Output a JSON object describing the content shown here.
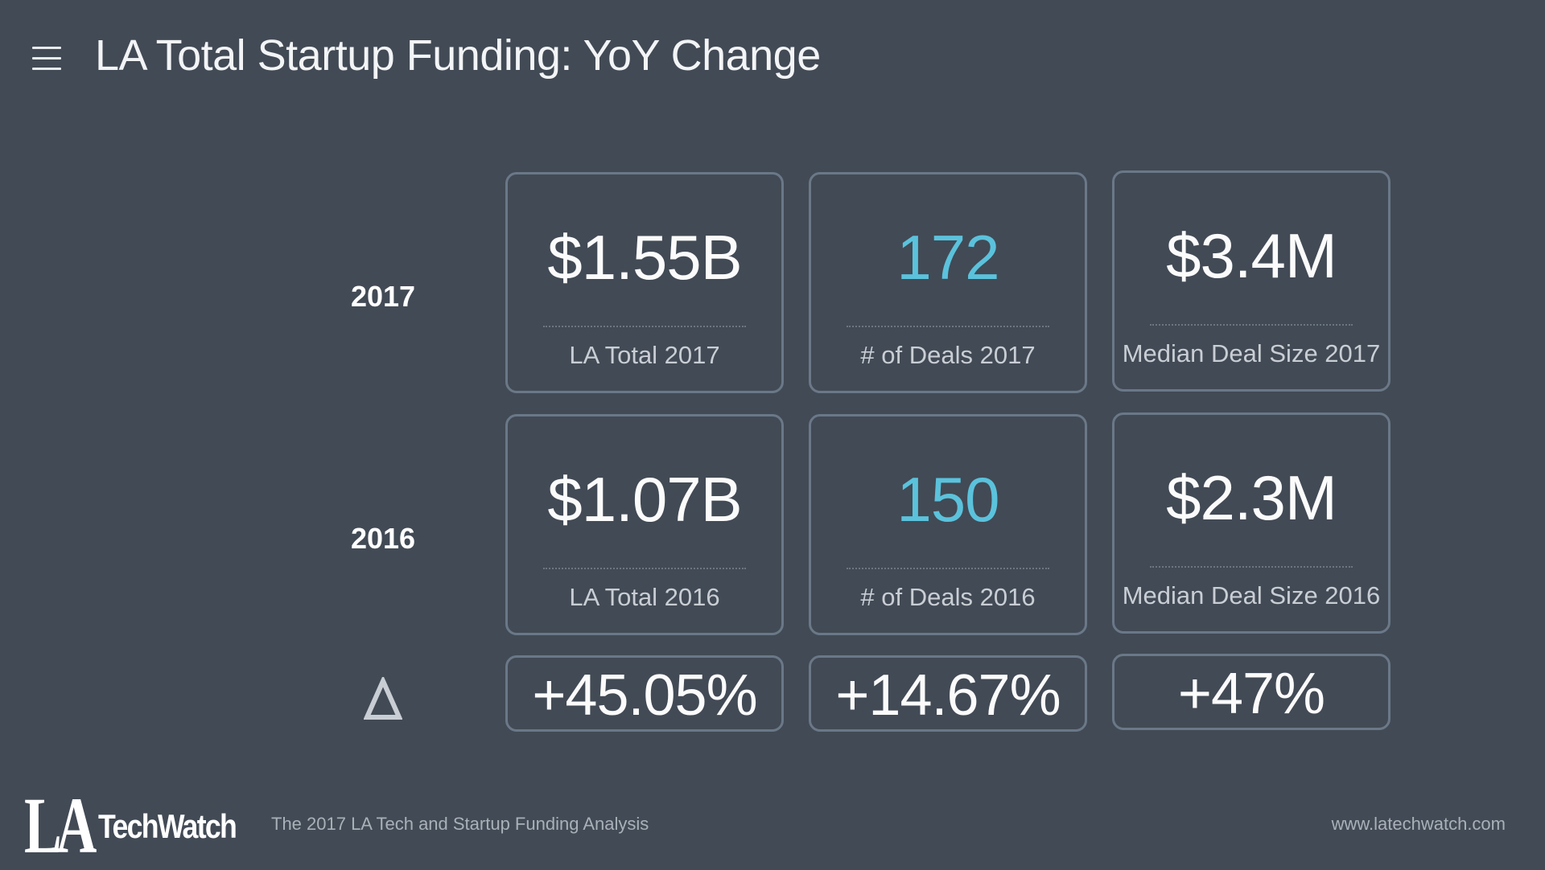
{
  "header": {
    "title": "LA Total Startup Funding: YoY Change",
    "menu_icon": "hamburger-icon"
  },
  "rows": {
    "y2017": {
      "label": "2017"
    },
    "y2016": {
      "label": "2016"
    },
    "delta": {
      "symbol": "delta-icon"
    }
  },
  "cards": {
    "total_2017": {
      "value": "$1.55B",
      "label": "LA Total 2017"
    },
    "deals_2017": {
      "value": "172",
      "label": "# of Deals 2017"
    },
    "median_2017": {
      "value": "$3.4M",
      "label": "Median Deal Size 2017"
    },
    "total_2016": {
      "value": "$1.07B",
      "label": "LA Total 2016"
    },
    "deals_2016": {
      "value": "150",
      "label": "# of Deals 2016"
    },
    "median_2016": {
      "value": "$2.3M",
      "label": "Median Deal Size 2016"
    },
    "total_change": {
      "value": "+45.05%"
    },
    "deals_change": {
      "value": "+14.67%"
    },
    "median_change": {
      "value": "+47%"
    }
  },
  "footer": {
    "logo_la": "LA",
    "logo_name": "TechWatch",
    "subtitle": "The 2017 LA Tech and Startup Funding Analysis",
    "url": "www.latechwatch.com"
  },
  "colors": {
    "background": "#424a55",
    "card_border": "#6a7888",
    "accent": "#5bc2dc"
  }
}
